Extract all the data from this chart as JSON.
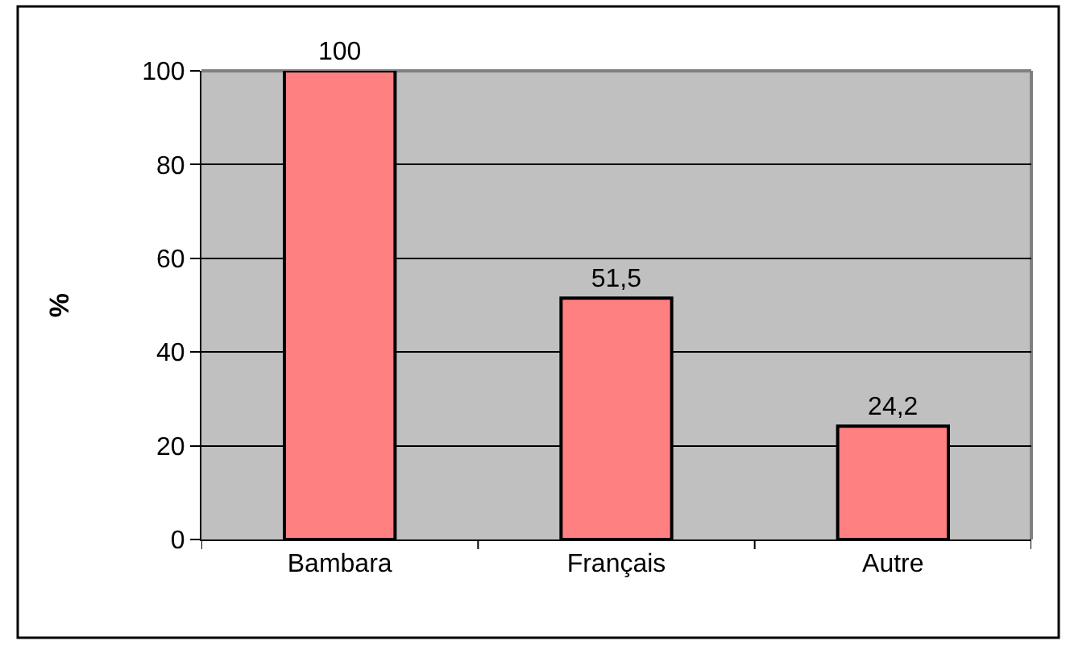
{
  "chart_data": {
    "type": "bar",
    "ylabel": "%",
    "categories": [
      "Bambara",
      "Français",
      "Autre"
    ],
    "values": [
      100,
      51.5,
      24.2
    ],
    "color": "#ff8080",
    "value_labels": [
      "100",
      "51,5",
      "24,2"
    ],
    "ylim": [
      0,
      100
    ],
    "yticks": [
      0,
      20,
      40,
      60,
      80,
      100
    ],
    "grid": "y"
  }
}
